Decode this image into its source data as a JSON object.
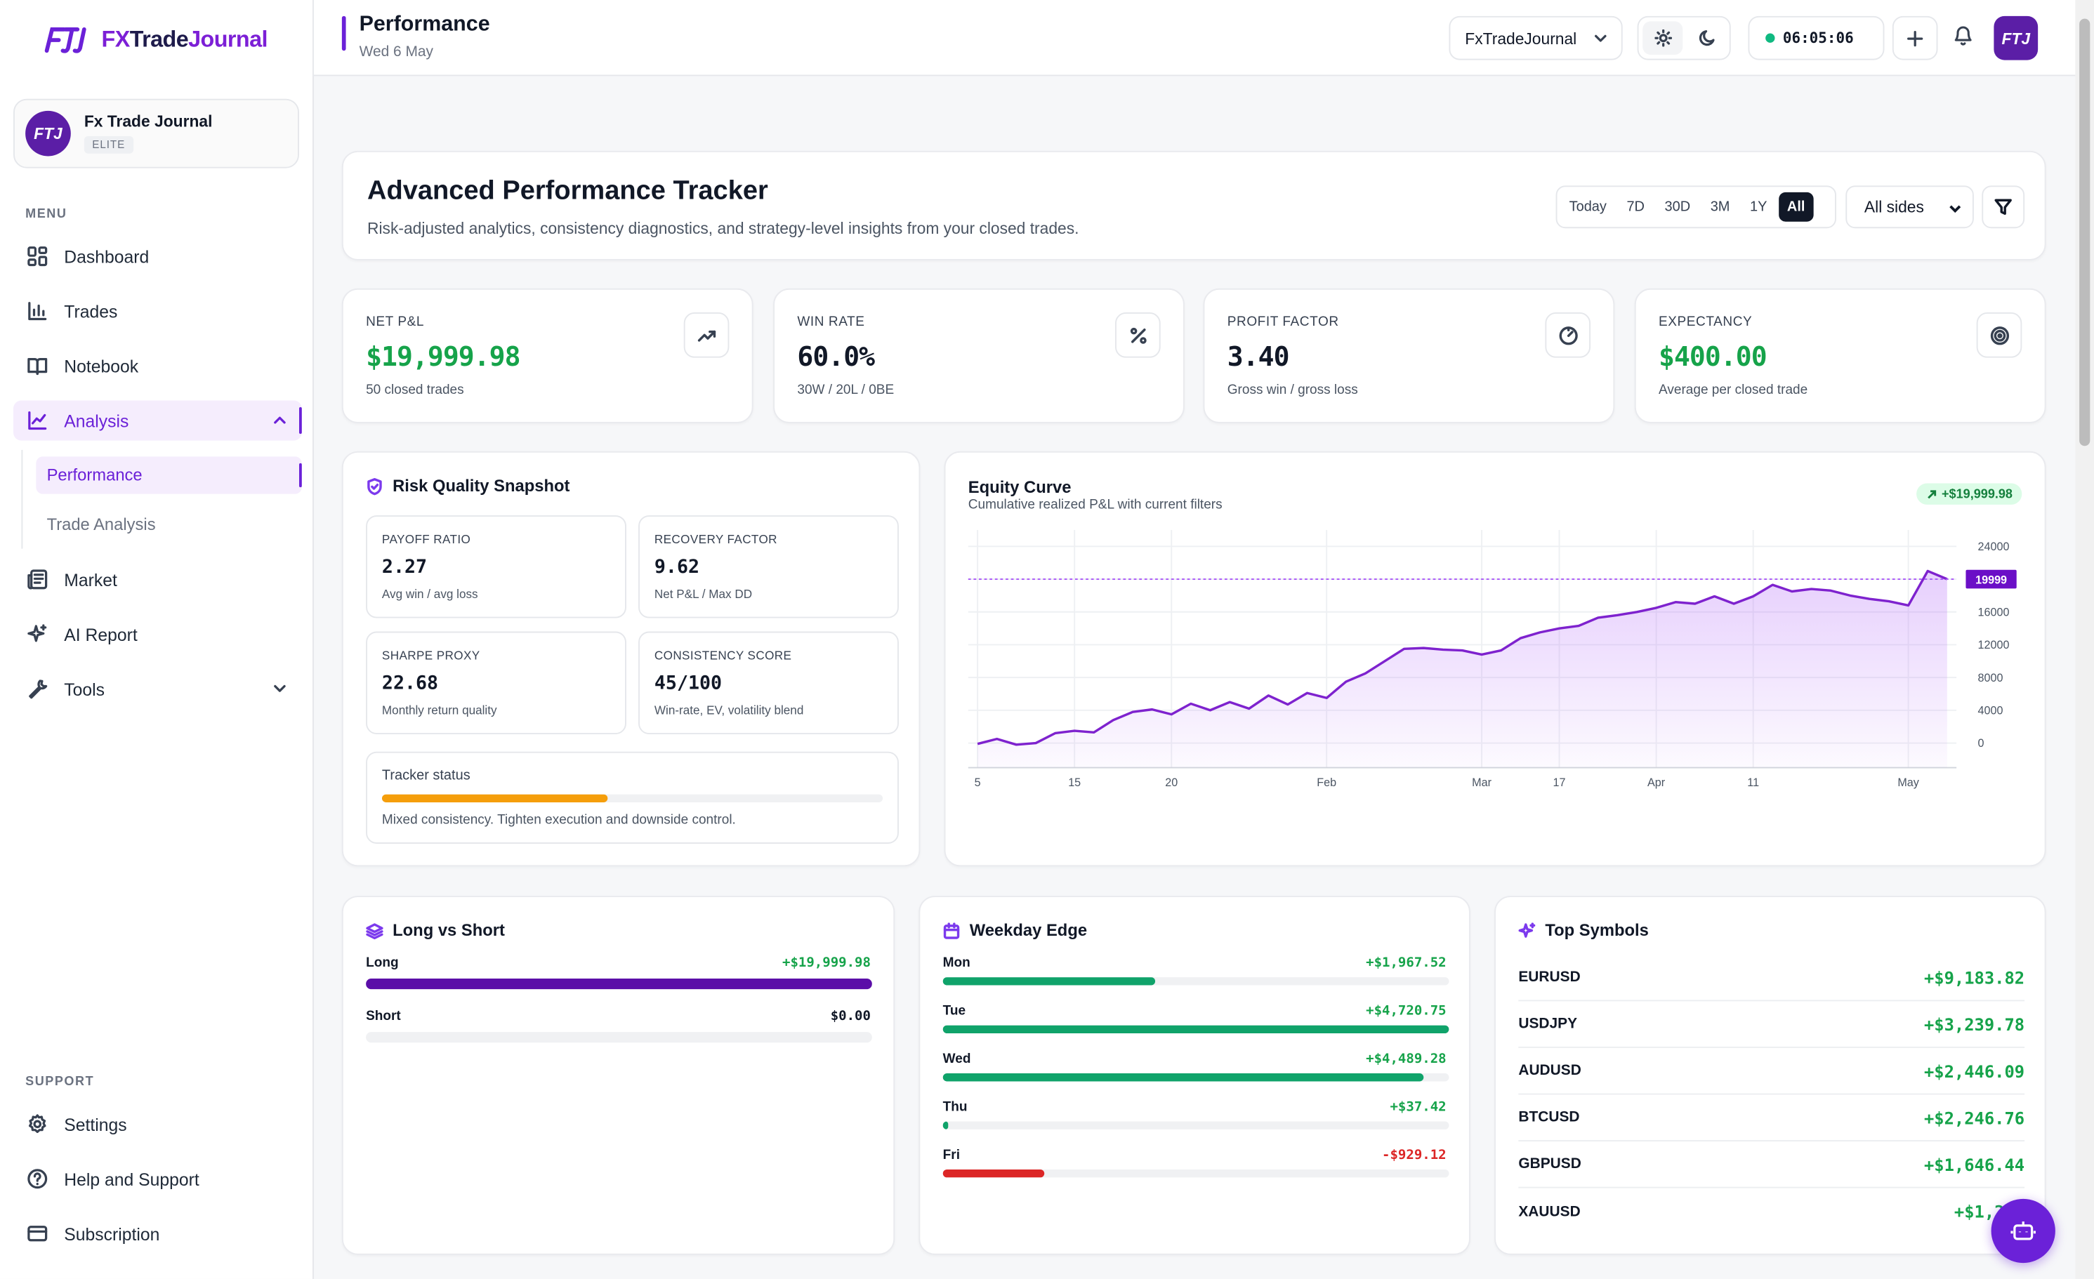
{
  "app": {
    "brand_fx": "FX",
    "brand_trade": "Trade",
    "brand_journal": "Journal"
  },
  "profile": {
    "name": "Fx Trade Journal",
    "tier": "ELITE",
    "avatar_text": "FTJ"
  },
  "sidebar": {
    "menu_label": "MENU",
    "items": [
      {
        "label": "Dashboard",
        "icon": "grid-icon"
      },
      {
        "label": "Trades",
        "icon": "bar-chart-icon"
      },
      {
        "label": "Notebook",
        "icon": "book-icon"
      },
      {
        "label": "Analysis",
        "icon": "line-chart-icon"
      },
      {
        "label": "Market",
        "icon": "newspaper-icon"
      },
      {
        "label": "AI Report",
        "icon": "sparkles-icon"
      },
      {
        "label": "Tools",
        "icon": "wrench-icon"
      }
    ],
    "analysis_sub": [
      {
        "label": "Performance"
      },
      {
        "label": "Trade Analysis"
      }
    ],
    "support_label": "SUPPORT",
    "support_items": [
      {
        "label": "Settings"
      },
      {
        "label": "Help and Support"
      },
      {
        "label": "Subscription"
      }
    ]
  },
  "header": {
    "title": "Performance",
    "date": "Wed 6 May",
    "journal_select": "FxTradeJournal",
    "clock": "06:05:06"
  },
  "tracker": {
    "title": "Advanced Performance Tracker",
    "subtitle": "Risk-adjusted analytics, consistency diagnostics, and strategy-level insights from your closed trades.",
    "ranges": [
      "Today",
      "7D",
      "30D",
      "3M",
      "1Y",
      "All"
    ],
    "selected_range": "All",
    "sides_select": "All sides"
  },
  "kpis": [
    {
      "label": "NET P&L",
      "value": "$19,999.98",
      "sub": "50 closed trades",
      "icon": "trending-up-icon"
    },
    {
      "label": "WIN RATE",
      "value": "60.0%",
      "sub": "30W / 20L / 0BE",
      "icon": "percent-icon"
    },
    {
      "label": "PROFIT FACTOR",
      "value": "3.40",
      "sub": "Gross win / gross loss",
      "icon": "gauge-icon"
    },
    {
      "label": "EXPECTANCY",
      "value": "$400.00",
      "sub": "Average per closed trade",
      "icon": "target-icon"
    }
  ],
  "risk": {
    "title": "Risk Quality Snapshot",
    "metrics": [
      {
        "label": "PAYOFF RATIO",
        "value": "2.27",
        "sub": "Avg win / avg loss"
      },
      {
        "label": "RECOVERY FACTOR",
        "value": "9.62",
        "sub": "Net P&L / Max DD"
      },
      {
        "label": "SHARPE PROXY",
        "value": "22.68",
        "sub": "Monthly return quality"
      },
      {
        "label": "CONSISTENCY SCORE",
        "value": "45/100",
        "sub": "Win-rate, EV, volatility blend"
      }
    ],
    "status_label": "Tracker status",
    "status_level": 0.45,
    "status_text": "Mixed consistency. Tighten execution and downside control."
  },
  "equity": {
    "title": "Equity Curve",
    "subtitle": "Cumulative realized P&L with current filters",
    "badge": "+$19,999.98",
    "current_label": "19999"
  },
  "chart_data": {
    "type": "area",
    "title": "Equity Curve",
    "x_ticks": [
      "5",
      "15",
      "20",
      "Feb",
      "Mar",
      "17",
      "Apr",
      "11",
      "May"
    ],
    "y_ticks": [
      "0",
      "4000",
      "8000",
      "12000",
      "16000",
      "20000",
      "24000"
    ],
    "ylim": [
      -3000,
      26000
    ],
    "reference_value": 19999,
    "grid": true,
    "color": "#7e22ce",
    "series": [
      {
        "values": [
          -100,
          500,
          -200,
          0,
          1200,
          1500,
          1300,
          2800,
          3800,
          4100,
          3500,
          4800,
          4000,
          5000,
          4200,
          5800,
          4700,
          6100,
          5500,
          7500,
          8500,
          10000,
          11500,
          11600,
          11400,
          11300,
          10800,
          11300,
          12800,
          13500,
          14000,
          14300,
          15300,
          15600,
          16000,
          16500,
          17200,
          17000,
          17900,
          17000,
          17900,
          19300,
          18500,
          18800,
          18600,
          18000,
          17600,
          17300,
          16800,
          21000,
          20000
        ]
      }
    ]
  },
  "long_short": {
    "title": "Long vs Short",
    "rows": [
      {
        "label": "Long",
        "value": "+$19,999.98",
        "share": 1.0
      },
      {
        "label": "Short",
        "value": "$0.00",
        "share": 0.0
      }
    ]
  },
  "weekday": {
    "title": "Weekday Edge",
    "rows": [
      {
        "label": "Mon",
        "value": "+$1,967.52",
        "share": 0.42
      },
      {
        "label": "Tue",
        "value": "+$4,720.75",
        "share": 1.0
      },
      {
        "label": "Wed",
        "value": "+$4,489.28",
        "share": 0.95
      },
      {
        "label": "Thu",
        "value": "+$37.42",
        "share": 0.01
      },
      {
        "label": "Fri",
        "value": "-$929.12",
        "share": 0.2
      }
    ]
  },
  "symbols": {
    "title": "Top Symbols",
    "rows": [
      {
        "name": "EURUSD",
        "value": "+$9,183.82"
      },
      {
        "name": "USDJPY",
        "value": "+$3,239.78"
      },
      {
        "name": "AUDUSD",
        "value": "+$2,446.09"
      },
      {
        "name": "BTCUSD",
        "value": "+$2,246.76"
      },
      {
        "name": "GBPUSD",
        "value": "+$1,646.44"
      },
      {
        "name": "XAUUSD",
        "value": "+$1,237"
      }
    ]
  },
  "colors": {
    "accent": "#6b21d8",
    "positive": "#16a34a",
    "negative": "#dc2626",
    "bar_green": "#10a36a",
    "warning": "#f59e0b"
  }
}
